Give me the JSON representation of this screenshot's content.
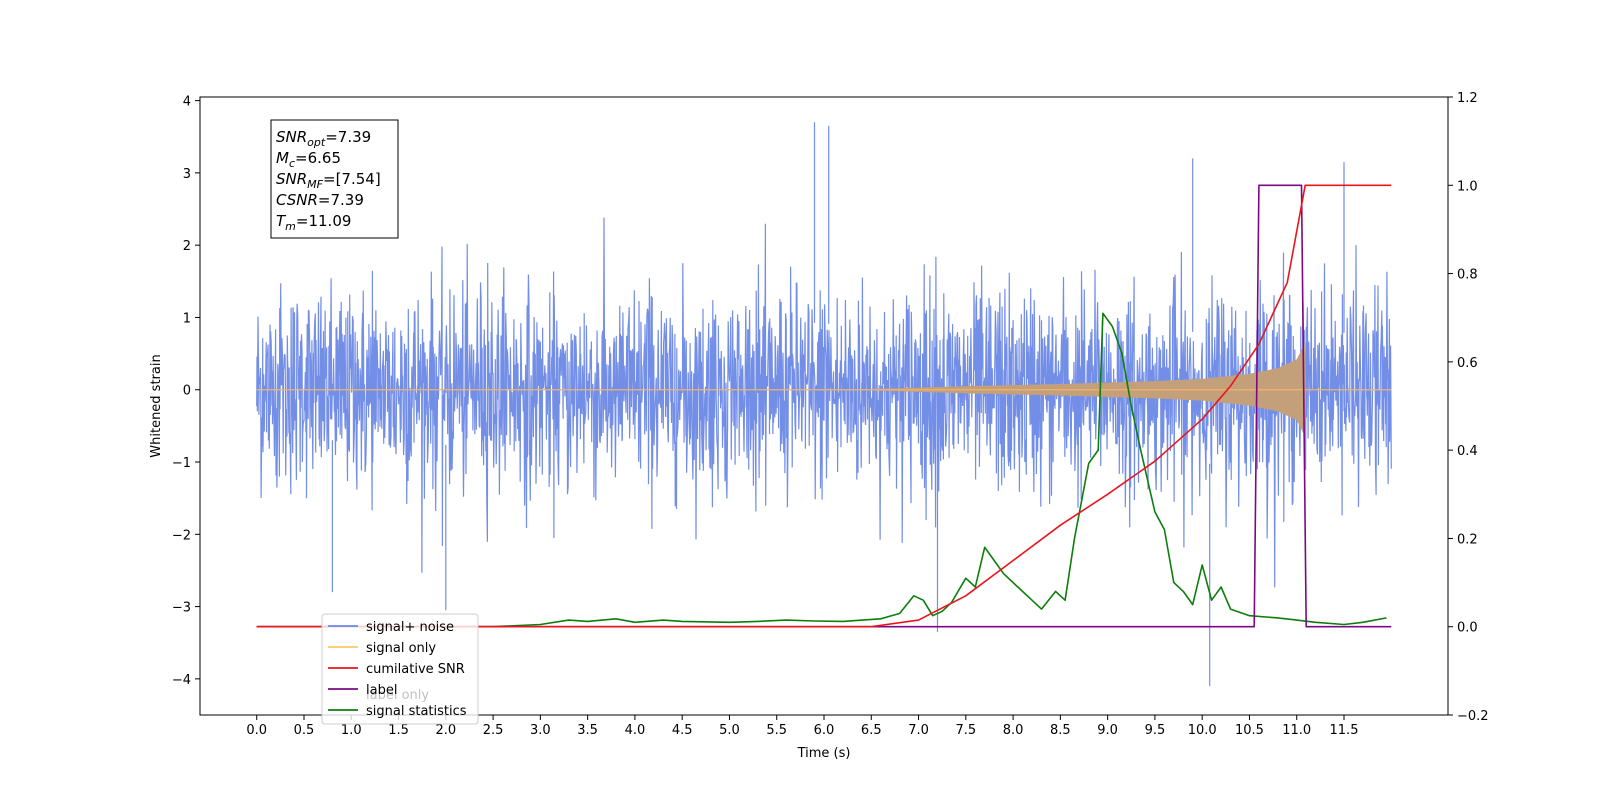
{
  "chart_data": {
    "type": "line",
    "xlabel": "Time (s)",
    "ylabel": "Whitened strain",
    "xlim": [
      -0.6,
      12.6
    ],
    "ylim": [
      -4.5,
      4.05
    ],
    "y2lim": [
      -0.2,
      1.2
    ],
    "x_ticks": [
      0.0,
      0.5,
      1.0,
      1.5,
      2.0,
      2.5,
      3.0,
      3.5,
      4.0,
      4.5,
      5.0,
      5.5,
      6.0,
      6.5,
      7.0,
      7.5,
      8.0,
      8.5,
      9.0,
      9.5,
      10.0,
      10.5,
      11.0,
      11.5
    ],
    "x_tick_labels": [
      "0.0",
      "0.5",
      "1.0",
      "1.5",
      "2.0",
      "2.5",
      "3.0",
      "3.5",
      "4.0",
      "4.5",
      "5.0",
      "5.5",
      "6.0",
      "6.5",
      "7.0",
      "7.5",
      "8.0",
      "8.5",
      "9.0",
      "9.5",
      "10.0",
      "10.5",
      "11.0",
      "11.5"
    ],
    "y_ticks": [
      -4,
      -3,
      -2,
      -1,
      0,
      1,
      2,
      3,
      4
    ],
    "y_tick_labels": [
      "−4",
      "−3",
      "−2",
      "−1",
      "0",
      "1",
      "2",
      "3",
      "4"
    ],
    "y2_ticks": [
      -0.2,
      0.0,
      0.2,
      0.4,
      0.6,
      0.8,
      1.0,
      1.2
    ],
    "y2_tick_labels": [
      "−0.2",
      "0.0",
      "0.2",
      "0.4",
      "0.6",
      "0.8",
      "1.0",
      "1.2"
    ],
    "legend_position": "lower-left",
    "series": [
      {
        "name": "signal+ noise",
        "axis": "left",
        "color": "#6b88e6",
        "kind": "noise_band",
        "x_range": [
          0.0,
          12.0
        ],
        "typical_range": [
          -1.6,
          1.6
        ],
        "peaks_x": [
          5.9,
          6.05,
          9.9,
          10.08,
          2.0,
          0.8,
          7.2,
          11.5
        ],
        "peaks_y": [
          3.7,
          3.65,
          3.2,
          -4.1,
          -3.05,
          -2.8,
          -3.35,
          3.15
        ]
      },
      {
        "name": "signal only",
        "axis": "left",
        "color": "#c4a07a",
        "kind": "chirp_envelope",
        "x": [
          0.0,
          5.0,
          6.5,
          7.5,
          8.5,
          9.5,
          10.0,
          10.5,
          10.8,
          11.0,
          11.09,
          11.1,
          12.0
        ],
        "amplitude": [
          0.0,
          0.0,
          0.01,
          0.05,
          0.08,
          0.12,
          0.15,
          0.22,
          0.3,
          0.42,
          0.65,
          0.0,
          0.0
        ]
      },
      {
        "name": "cumilative SNR",
        "axis": "right",
        "color": "#e8161c",
        "x": [
          0.0,
          6.5,
          7.0,
          7.5,
          8.0,
          8.5,
          9.0,
          9.5,
          10.0,
          10.3,
          10.6,
          10.9,
          11.09,
          11.1,
          12.0
        ],
        "values": [
          0.0,
          0.0,
          0.015,
          0.07,
          0.15,
          0.23,
          0.3,
          0.375,
          0.47,
          0.545,
          0.64,
          0.78,
          1.0,
          1.0,
          1.0
        ]
      },
      {
        "name": "label",
        "axis": "right",
        "color": "#7a0a84",
        "x": [
          0.0,
          10.55,
          10.6,
          11.05,
          11.1,
          12.0
        ],
        "values": [
          0.0,
          0.0,
          1.0,
          1.0,
          0.0,
          0.0
        ]
      },
      {
        "name": "signal statistics",
        "axis": "right",
        "color": "#0d7d0d",
        "x": [
          0.0,
          2.5,
          3.0,
          3.3,
          3.5,
          3.8,
          4.0,
          4.3,
          4.5,
          5.0,
          5.3,
          5.6,
          5.9,
          6.2,
          6.6,
          6.8,
          6.95,
          7.05,
          7.15,
          7.25,
          7.35,
          7.5,
          7.6,
          7.7,
          7.8,
          7.9,
          8.05,
          8.2,
          8.3,
          8.45,
          8.55,
          8.65,
          8.8,
          8.9,
          8.95,
          9.05,
          9.15,
          9.25,
          9.35,
          9.5,
          9.6,
          9.7,
          9.8,
          9.9,
          10.0,
          10.1,
          10.2,
          10.3,
          10.5,
          10.8,
          11.0,
          11.2,
          11.5,
          11.7,
          11.95
        ],
        "values": [
          0.0,
          0.0,
          0.005,
          0.015,
          0.012,
          0.018,
          0.01,
          0.015,
          0.012,
          0.01,
          0.012,
          0.015,
          0.013,
          0.012,
          0.018,
          0.03,
          0.07,
          0.06,
          0.025,
          0.035,
          0.055,
          0.11,
          0.09,
          0.18,
          0.15,
          0.12,
          0.09,
          0.06,
          0.04,
          0.08,
          0.06,
          0.2,
          0.37,
          0.4,
          0.71,
          0.68,
          0.62,
          0.5,
          0.4,
          0.26,
          0.22,
          0.1,
          0.08,
          0.05,
          0.14,
          0.06,
          0.09,
          0.04,
          0.025,
          0.02,
          0.015,
          0.01,
          0.005,
          0.01,
          0.02
        ]
      }
    ],
    "legend": [
      "signal+ noise",
      "signal only",
      "cumilative SNR",
      "label",
      "label only",
      "signal statistics"
    ],
    "annotation_box": [
      {
        "sym": "SNR",
        "sub": "opt",
        "val": "=7.39"
      },
      {
        "sym": "M",
        "sub": "c",
        "val": "=6.65"
      },
      {
        "sym": "SNR",
        "sub": "MF",
        "val": "=[7.54]"
      },
      {
        "sym": "CSNR",
        "sub": "",
        "val": "=7.39"
      },
      {
        "sym": "T",
        "sub": "m",
        "val": "=11.09"
      }
    ]
  }
}
